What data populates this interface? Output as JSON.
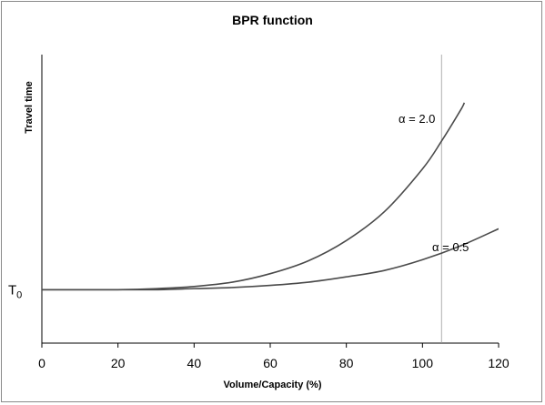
{
  "chart_data": {
    "type": "line",
    "title": "BPR function",
    "xlabel": "Volume/Capacity (%)",
    "ylabel": "Travel time",
    "xlim": [
      0,
      120
    ],
    "ylim": [
      -0.5,
      2.2
    ],
    "x_ticks": [
      "0",
      "20",
      "40",
      "60",
      "80",
      "100",
      "120"
    ],
    "y_tick_label": "T",
    "y_tick_subscript": "0",
    "grid": false,
    "reference_line_x": 105,
    "series": [
      {
        "name": "α = 2.0",
        "x": [
          0,
          10,
          20,
          30,
          40,
          50,
          60,
          70,
          80,
          90,
          100,
          105,
          110,
          111
        ],
        "y": [
          0.0,
          0.0,
          0.0,
          0.01,
          0.03,
          0.07,
          0.15,
          0.27,
          0.46,
          0.73,
          1.13,
          1.39,
          1.68,
          1.75
        ]
      },
      {
        "name": "α = 0.5",
        "x": [
          0,
          10,
          20,
          30,
          40,
          50,
          60,
          70,
          80,
          90,
          100,
          110,
          120
        ],
        "y": [
          0.0,
          0.0,
          0.0,
          0.0,
          0.01,
          0.02,
          0.04,
          0.07,
          0.12,
          0.18,
          0.28,
          0.41,
          0.57
        ]
      }
    ],
    "annotations": [
      "α = 2.0",
      "α = 0.5"
    ]
  }
}
